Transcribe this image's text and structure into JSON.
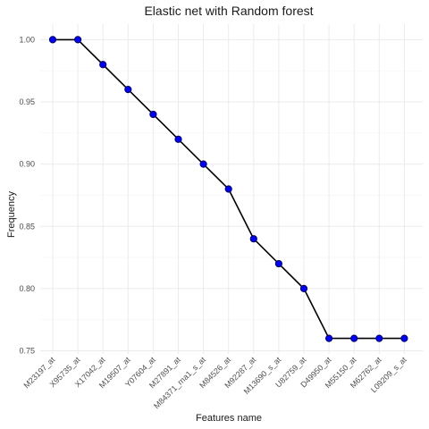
{
  "chart_data": {
    "type": "line",
    "title": "Elastic net with Random forest",
    "xlabel": "Features name",
    "ylabel": "Frequency",
    "categories": [
      "M23197_at",
      "X95735_at",
      "X17042_at",
      "M19507_at",
      "Y07604_at",
      "M27891_at",
      "M84371_rna1_s_at",
      "M84526_at",
      "M92287_at",
      "M13690_s_at",
      "U82759_at",
      "D49950_at",
      "M55150_at",
      "M62762_at",
      "L09209_s_at"
    ],
    "values": [
      1.0,
      1.0,
      0.98,
      0.96,
      0.94,
      0.92,
      0.9,
      0.88,
      0.84,
      0.82,
      0.8,
      0.76,
      0.76,
      0.76,
      0.76
    ],
    "yticks": [
      0.75,
      0.8,
      0.85,
      0.9,
      0.95,
      1.0
    ],
    "ytick_labels": [
      "0.75",
      "0.80",
      "0.85",
      "0.90",
      "0.95",
      "1.00"
    ],
    "ylim": [
      0.7475,
      1.0125
    ],
    "grid": true,
    "line_color": "#000000",
    "point_color": "#0000ff"
  }
}
